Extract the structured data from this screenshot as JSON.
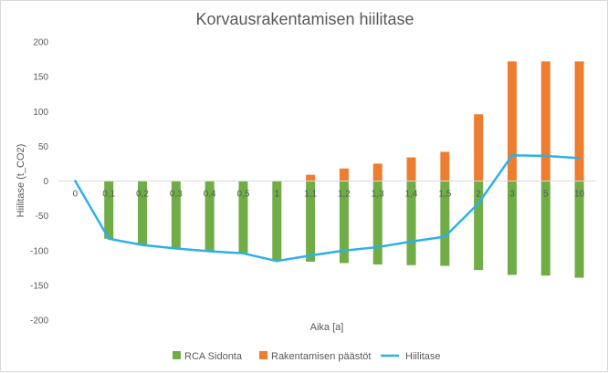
{
  "chart_data": {
    "type": "bar+line",
    "title": "Korvausrakentamisen hiilitase",
    "xlabel": "Aika [a]",
    "ylabel": "Hiilitase (t_CO2)",
    "ylim": [
      -200,
      200
    ],
    "yticks": [
      200,
      150,
      100,
      50,
      0,
      -50,
      -100,
      -150,
      -200
    ],
    "categories": [
      "0",
      "0,1",
      "0,2",
      "0,3",
      "0,4",
      "0,5",
      "1",
      "1,1",
      "1,2",
      "1,3",
      "1,4",
      "1,5",
      "2",
      "3",
      "5",
      "10"
    ],
    "series": [
      {
        "name": "RCA Sidonta",
        "kind": "bar",
        "color": "#70ad47",
        "values": [
          0,
          -83,
          -92,
          -97,
          -101,
          -104,
          -115,
          -116,
          -118,
          -120,
          -121,
          -122,
          -128,
          -135,
          -136,
          -139
        ]
      },
      {
        "name": "Rakentamisen päästöt",
        "kind": "bar",
        "color": "#ed7d31",
        "values": [
          0,
          0,
          0,
          0,
          0,
          0,
          0,
          9,
          18,
          25,
          34,
          42,
          96,
          172,
          172,
          172
        ]
      },
      {
        "name": "Hiilitase",
        "kind": "line",
        "color": "#2eb0e8",
        "values": [
          0,
          -83,
          -92,
          -97,
          -101,
          -104,
          -115,
          -107,
          -100,
          -95,
          -87,
          -80,
          -32,
          37,
          36,
          33
        ]
      }
    ],
    "legend_position": "bottom",
    "grid": false
  }
}
